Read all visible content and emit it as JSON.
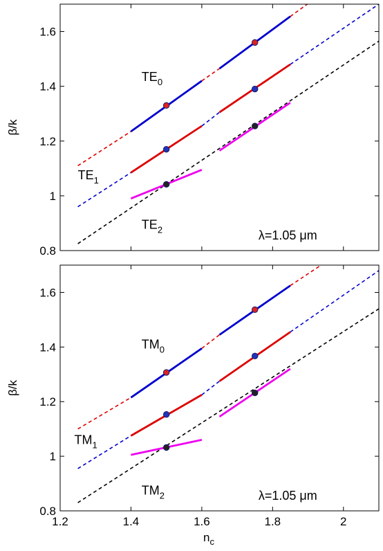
{
  "figure": {
    "xlabel": "n",
    "xlabel_sub": "c"
  },
  "chart_data": [
    {
      "type": "line",
      "panel": "top",
      "ylabel": "β/k",
      "xlim": [
        1.2,
        2.1
      ],
      "ylim": [
        0.8,
        1.7
      ],
      "xticks": [
        1.2,
        1.4,
        1.6,
        1.8,
        2
      ],
      "xticklabels_visible": false,
      "yticks": [
        0.8,
        1,
        1.2,
        1.4,
        1.6
      ],
      "grid": false,
      "series": [
        {
          "color": "#dd0000",
          "dash": true,
          "points": [
            [
              1.25,
              1.11
            ],
            [
              1.4,
              1.235
            ]
          ]
        },
        {
          "color": "#0000cc",
          "dash": false,
          "points": [
            [
              1.4,
              1.235
            ],
            [
              1.6,
              1.42
            ]
          ]
        },
        {
          "color": "#dd0000",
          "dash": true,
          "points": [
            [
              1.6,
              1.42
            ],
            [
              1.65,
              1.465
            ]
          ]
        },
        {
          "color": "#0000cc",
          "dash": false,
          "points": [
            [
              1.65,
              1.465
            ],
            [
              1.85,
              1.655
            ]
          ]
        },
        {
          "color": "#dd0000",
          "dash": true,
          "points": [
            [
              1.85,
              1.655
            ],
            [
              1.93,
              1.73
            ]
          ]
        },
        {
          "color": "#0000cc",
          "dash": true,
          "points": [
            [
              1.25,
              0.96
            ],
            [
              1.4,
              1.085
            ]
          ]
        },
        {
          "color": "#dd0000",
          "dash": false,
          "points": [
            [
              1.4,
              1.085
            ],
            [
              1.6,
              1.255
            ]
          ]
        },
        {
          "color": "#0000cc",
          "dash": true,
          "points": [
            [
              1.6,
              1.255
            ],
            [
              1.65,
              1.305
            ]
          ]
        },
        {
          "color": "#dd0000",
          "dash": false,
          "points": [
            [
              1.65,
              1.305
            ],
            [
              1.85,
              1.48
            ]
          ]
        },
        {
          "color": "#0000cc",
          "dash": true,
          "points": [
            [
              1.85,
              1.48
            ],
            [
              2.1,
              1.7
            ]
          ]
        },
        {
          "color": "#000000",
          "dash": true,
          "points": [
            [
              1.25,
              0.825
            ],
            [
              2.1,
              1.565
            ]
          ]
        },
        {
          "color": "#ee00ee",
          "dash": false,
          "points": [
            [
              1.4,
              0.99
            ],
            [
              1.6,
              1.095
            ]
          ]
        },
        {
          "color": "#ee00ee",
          "dash": false,
          "points": [
            [
              1.65,
              1.165
            ],
            [
              1.85,
              1.34
            ]
          ]
        }
      ],
      "markers": [
        {
          "x": 1.5,
          "y": 1.33,
          "color": "#dd2222"
        },
        {
          "x": 1.75,
          "y": 1.56,
          "color": "#dd2222"
        },
        {
          "x": 1.5,
          "y": 1.17,
          "color": "#2233bb"
        },
        {
          "x": 1.75,
          "y": 1.39,
          "color": "#2233bb"
        },
        {
          "x": 1.5,
          "y": 1.042,
          "color": "#222222"
        },
        {
          "x": 1.75,
          "y": 1.255,
          "color": "#222222"
        }
      ],
      "annotations": [
        {
          "base": "TE",
          "sub": "0",
          "x": 1.43,
          "y": 1.42
        },
        {
          "base": "TE",
          "sub": "1",
          "x": 1.25,
          "y": 1.06
        },
        {
          "base": "TE",
          "sub": "2",
          "x": 1.43,
          "y": 0.88
        },
        {
          "base": "λ=1.05 μm",
          "sub": "",
          "x": 1.76,
          "y": 0.84
        }
      ]
    },
    {
      "type": "line",
      "panel": "bottom",
      "ylabel": "β/k",
      "xlim": [
        1.2,
        2.1
      ],
      "ylim": [
        0.8,
        1.7
      ],
      "xticks": [
        1.2,
        1.4,
        1.6,
        1.8,
        2
      ],
      "xticklabels": [
        "1.2",
        "1.4",
        "1.6",
        "1.8",
        "2"
      ],
      "yticks": [
        0.8,
        1,
        1.2,
        1.4,
        1.6
      ],
      "grid": false,
      "series": [
        {
          "color": "#dd0000",
          "dash": true,
          "points": [
            [
              1.25,
              1.1
            ],
            [
              1.4,
              1.215
            ]
          ]
        },
        {
          "color": "#0000cc",
          "dash": false,
          "points": [
            [
              1.4,
              1.215
            ],
            [
              1.6,
              1.395
            ]
          ]
        },
        {
          "color": "#dd0000",
          "dash": true,
          "points": [
            [
              1.6,
              1.395
            ],
            [
              1.65,
              1.445
            ]
          ]
        },
        {
          "color": "#0000cc",
          "dash": false,
          "points": [
            [
              1.65,
              1.445
            ],
            [
              1.85,
              1.625
            ]
          ]
        },
        {
          "color": "#dd0000",
          "dash": true,
          "points": [
            [
              1.85,
              1.625
            ],
            [
              1.96,
              1.72
            ]
          ]
        },
        {
          "color": "#0000cc",
          "dash": true,
          "points": [
            [
              1.25,
              0.955
            ],
            [
              1.4,
              1.075
            ]
          ]
        },
        {
          "color": "#dd0000",
          "dash": false,
          "points": [
            [
              1.4,
              1.075
            ],
            [
              1.6,
              1.225
            ]
          ]
        },
        {
          "color": "#0000cc",
          "dash": true,
          "points": [
            [
              1.6,
              1.225
            ],
            [
              1.65,
              1.275
            ]
          ]
        },
        {
          "color": "#dd0000",
          "dash": false,
          "points": [
            [
              1.65,
              1.275
            ],
            [
              1.85,
              1.455
            ]
          ]
        },
        {
          "color": "#0000cc",
          "dash": true,
          "points": [
            [
              1.85,
              1.455
            ],
            [
              2.1,
              1.68
            ]
          ]
        },
        {
          "color": "#000000",
          "dash": true,
          "points": [
            [
              1.25,
              0.83
            ],
            [
              2.1,
              1.54
            ]
          ]
        },
        {
          "color": "#ee00ee",
          "dash": false,
          "points": [
            [
              1.4,
              1.005
            ],
            [
              1.6,
              1.06
            ]
          ]
        },
        {
          "color": "#ee00ee",
          "dash": false,
          "points": [
            [
              1.65,
              1.145
            ],
            [
              1.85,
              1.32
            ]
          ]
        }
      ],
      "markers": [
        {
          "x": 1.5,
          "y": 1.307,
          "color": "#dd2222"
        },
        {
          "x": 1.75,
          "y": 1.537,
          "color": "#dd2222"
        },
        {
          "x": 1.5,
          "y": 1.153,
          "color": "#2233bb"
        },
        {
          "x": 1.75,
          "y": 1.367,
          "color": "#2233bb"
        },
        {
          "x": 1.5,
          "y": 1.032,
          "color": "#222222"
        },
        {
          "x": 1.75,
          "y": 1.232,
          "color": "#222222"
        }
      ],
      "annotations": [
        {
          "base": "TM",
          "sub": "0",
          "x": 1.43,
          "y": 1.395
        },
        {
          "base": "TM",
          "sub": "1",
          "x": 1.24,
          "y": 1.045
        },
        {
          "base": "TM",
          "sub": "2",
          "x": 1.43,
          "y": 0.86
        },
        {
          "base": "λ=1.05 μm",
          "sub": "",
          "x": 1.76,
          "y": 0.84
        }
      ]
    }
  ]
}
